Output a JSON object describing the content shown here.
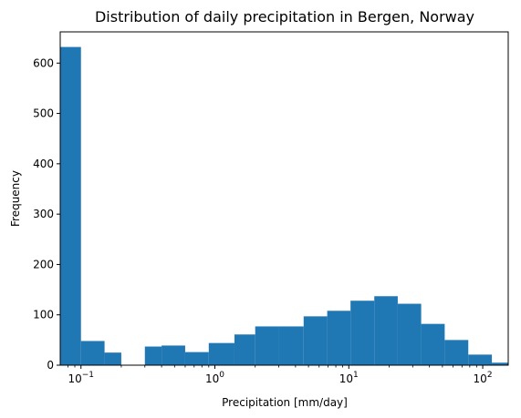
{
  "chart_data": {
    "type": "bar",
    "title": "Distribution of daily precipitation in Bergen, Norway",
    "xlabel": "Precipitation [mm/day]",
    "ylabel": "Frequency",
    "xscale": "log",
    "xlim": [
      0.07,
      155
    ],
    "ylim": [
      0,
      662
    ],
    "grid": false,
    "bar_color": "#1f77b4",
    "bins": [
      {
        "x0": 0.07,
        "x1": 0.1,
        "count": 632
      },
      {
        "x0": 0.1,
        "x1": 0.15,
        "count": 48
      },
      {
        "x0": 0.15,
        "x1": 0.2,
        "count": 25
      },
      {
        "x0": 0.2,
        "x1": 0.3,
        "count": 0
      },
      {
        "x0": 0.3,
        "x1": 0.4,
        "count": 37
      },
      {
        "x0": 0.4,
        "x1": 0.6,
        "count": 39
      },
      {
        "x0": 0.6,
        "x1": 0.9,
        "count": 26
      },
      {
        "x0": 0.9,
        "x1": 1.4,
        "count": 44
      },
      {
        "x0": 1.4,
        "x1": 2.0,
        "count": 61
      },
      {
        "x0": 2.0,
        "x1": 3.0,
        "count": 77
      },
      {
        "x0": 3.0,
        "x1": 4.6,
        "count": 77
      },
      {
        "x0": 4.6,
        "x1": 6.9,
        "count": 97
      },
      {
        "x0": 6.9,
        "x1": 10.3,
        "count": 108
      },
      {
        "x0": 10.3,
        "x1": 15.5,
        "count": 128
      },
      {
        "x0": 15.5,
        "x1": 23.2,
        "count": 137
      },
      {
        "x0": 23.2,
        "x1": 34.7,
        "count": 122
      },
      {
        "x0": 34.7,
        "x1": 52.0,
        "count": 82
      },
      {
        "x0": 52.0,
        "x1": 78.0,
        "count": 50
      },
      {
        "x0": 78.0,
        "x1": 117.0,
        "count": 21
      },
      {
        "x0": 117.0,
        "x1": 155.0,
        "count": 5
      }
    ],
    "yticks": [
      0,
      100,
      200,
      300,
      400,
      500,
      600
    ],
    "xticks": [
      {
        "value": 0.1,
        "base": "10",
        "exp": "−1"
      },
      {
        "value": 1,
        "base": "10",
        "exp": "0"
      },
      {
        "value": 10,
        "base": "10",
        "exp": "1"
      },
      {
        "value": 100,
        "base": "10",
        "exp": "2"
      }
    ]
  }
}
